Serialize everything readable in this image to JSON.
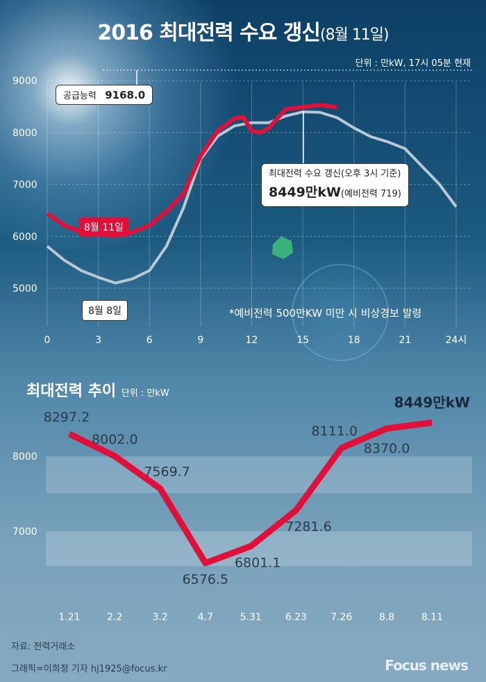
{
  "title": {
    "main": "2016 최대전력 수요 갱신",
    "sub": "(8월 11일)"
  },
  "unit_note": "단위 : 만kW, 17시 05분 현재",
  "callouts": {
    "supply_label": "공급능력",
    "supply_value": "9168.0",
    "peak_label": "최대전력 수요 갱신(오후 3시 기준)",
    "peak_value": "8449만kW",
    "peak_reserve": "(예비전력 719)",
    "aug11": "8월 11일",
    "aug8": "8월 8일"
  },
  "warning_note": "*예비전력 500만KW 미만 시 비상경보 발령",
  "colors": {
    "aug11": "#e0103a",
    "aug8": "#b8c8d4",
    "trend": "#e0103a"
  },
  "chart_data": [
    {
      "type": "line",
      "ylim": [
        4500,
        9000
      ],
      "xlim": [
        0,
        24
      ],
      "y_ticks": [
        "5000",
        "6000",
        "7000",
        "8000",
        "9000"
      ],
      "x_ticks": [
        "0",
        "3",
        "6",
        "9",
        "12",
        "15",
        "18",
        "21",
        "24시"
      ],
      "grid": true,
      "series": [
        {
          "name": "8월 11일",
          "x": [
            0,
            1,
            2,
            3,
            4,
            5,
            6,
            7,
            8,
            9,
            10,
            11,
            11.5,
            12,
            12.5,
            13,
            14,
            15,
            16,
            17
          ],
          "y": [
            6440,
            6210,
            6080,
            6040,
            6010,
            6080,
            6210,
            6480,
            6820,
            7550,
            8030,
            8270,
            8300,
            8030,
            8000,
            8090,
            8450,
            8490,
            8530,
            8490
          ]
        },
        {
          "name": "8월 8일",
          "x": [
            0,
            1,
            2,
            3,
            4,
            5,
            6,
            7,
            8,
            9,
            10,
            11,
            12,
            13,
            14,
            15,
            16,
            17,
            18,
            19,
            20,
            21,
            22,
            23,
            24
          ],
          "y": [
            5810,
            5540,
            5340,
            5210,
            5100,
            5180,
            5340,
            5810,
            6550,
            7490,
            7930,
            8130,
            8190,
            8190,
            8320,
            8400,
            8390,
            8290,
            8090,
            7920,
            7820,
            7690,
            7350,
            7010,
            6570
          ]
        }
      ]
    },
    {
      "type": "line",
      "title": "최대전력 추이",
      "unit": "단위 : 만kW",
      "categories": [
        "1.21",
        "2.2",
        "3.2",
        "4.7",
        "5.31",
        "6.23",
        "7.26",
        "8.8",
        "8.11"
      ],
      "values": [
        8297.2,
        8002.0,
        7569.7,
        6576.5,
        6801.1,
        7281.6,
        8111.0,
        8370.0,
        8449
      ],
      "labels": [
        "8297.2",
        "8002.0",
        "7569.7",
        "6576.5",
        "6801.1",
        "7281.6",
        "8111.0",
        "8370.0",
        "8449만kW"
      ],
      "y_ticks": [
        "7000",
        "8000"
      ]
    }
  ],
  "footer": {
    "source": "자료: 전력거래소",
    "credit": "그래픽=이희정 기자 hj1925@focus.kr",
    "logo": "Focus news"
  }
}
